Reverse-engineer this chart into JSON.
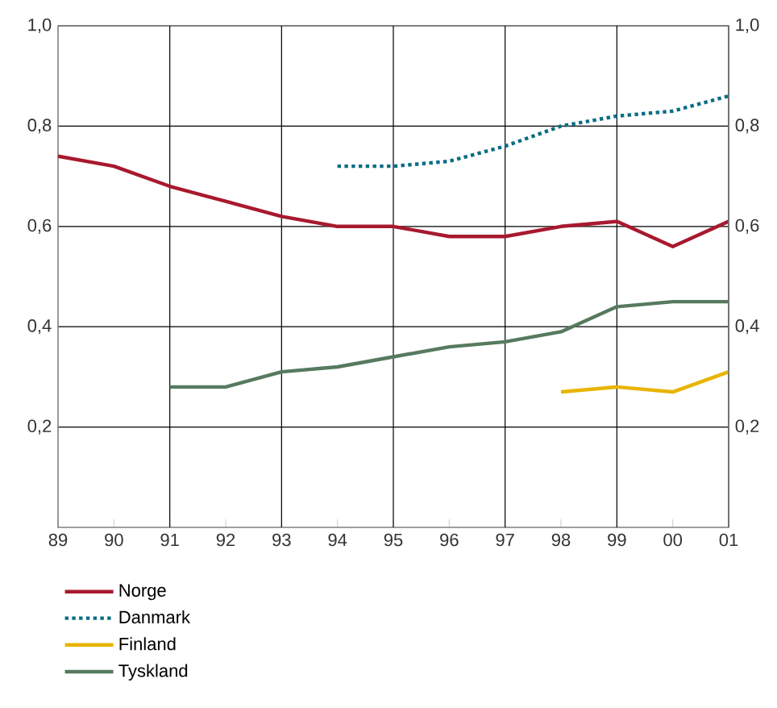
{
  "chart_data": {
    "type": "line",
    "categories": [
      "89",
      "90",
      "91",
      "92",
      "93",
      "94",
      "95",
      "96",
      "97",
      "98",
      "99",
      "00",
      "01"
    ],
    "series": [
      {
        "name": "Norge",
        "color": "#a8192e",
        "line_style": "solid",
        "values": [
          0.74,
          0.72,
          0.68,
          0.65,
          0.62,
          0.6,
          0.6,
          0.58,
          0.58,
          0.6,
          0.61,
          0.56,
          0.61
        ]
      },
      {
        "name": "Danmark",
        "color": "#0a6d85",
        "line_style": "dotted",
        "values": [
          null,
          null,
          null,
          null,
          null,
          0.72,
          0.72,
          0.73,
          0.76,
          0.8,
          0.82,
          0.83,
          0.86
        ]
      },
      {
        "name": "Finland",
        "color": "#e8b400",
        "line_style": "solid",
        "values": [
          null,
          null,
          null,
          null,
          null,
          null,
          null,
          null,
          null,
          0.27,
          0.28,
          0.27,
          0.31
        ]
      },
      {
        "name": "Tyskland",
        "color": "#567a5f",
        "line_style": "solid",
        "values": [
          null,
          null,
          0.28,
          0.28,
          0.31,
          0.32,
          0.34,
          0.36,
          0.37,
          0.39,
          0.44,
          0.45,
          0.45
        ]
      }
    ],
    "ylim": [
      0,
      1
    ],
    "yticks": [
      {
        "value": 0.2,
        "label": "0,2"
      },
      {
        "value": 0.4,
        "label": "0,4"
      },
      {
        "value": 0.6,
        "label": "0,6"
      },
      {
        "value": 0.8,
        "label": "0,8"
      },
      {
        "value": 1.0,
        "label": "1,0"
      }
    ],
    "y2lim": [
      0,
      1
    ],
    "y2ticks": [
      {
        "value": 0.2,
        "label": "0,2"
      },
      {
        "value": 0.4,
        "label": "0,4"
      },
      {
        "value": 0.6,
        "label": "0,6"
      },
      {
        "value": 0.8,
        "label": "0,8"
      },
      {
        "value": 1.0,
        "label": "1,0"
      }
    ],
    "grid": true,
    "legend": "bottom left",
    "marker": "none"
  }
}
